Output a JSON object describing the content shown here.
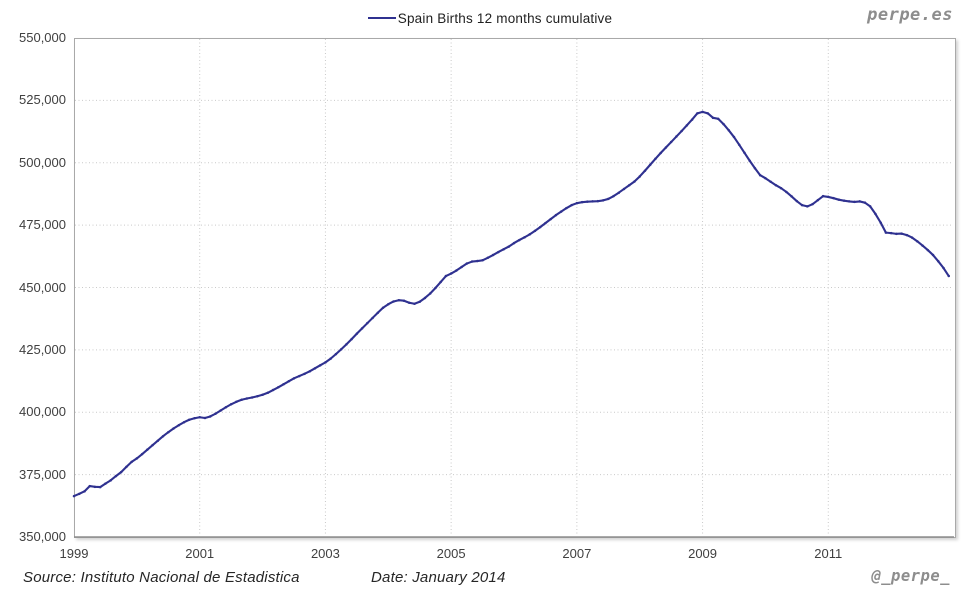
{
  "branding": {
    "logo": "perpe.es",
    "handle": "@_perpe_",
    "brand_color": "#8d8d8d"
  },
  "legend": {
    "label": "Spain Births 12 months cumulative"
  },
  "footer": {
    "source": "Source: Instituto Nacional de Estadistica",
    "date": "Date: January 2014"
  },
  "chart_data": {
    "type": "line",
    "title": "Spain Births 12 months cumulative",
    "xlabel": "",
    "ylabel": "",
    "grid": "dotted",
    "legend_position": "top-center",
    "ylim": [
      350000,
      550000
    ],
    "y_tick_step": 25000,
    "y_ticks": [
      350000,
      375000,
      400000,
      425000,
      450000,
      475000,
      500000,
      525000,
      550000
    ],
    "x_ticks": [
      1999,
      2001,
      2003,
      2005,
      2007,
      2009,
      2011
    ],
    "x_start": "1999-01",
    "x_end": "2012-12",
    "frequency": "monthly",
    "series": [
      {
        "name": "Spain Births 12 months cumulative",
        "color": "#2F3190",
        "values": [
          366400,
          367300,
          368300,
          370400,
          370100,
          370000,
          371400,
          372700,
          374400,
          376000,
          378100,
          380100,
          381500,
          383200,
          385000,
          386800,
          388600,
          390400,
          392000,
          393500,
          394800,
          396000,
          397000,
          397600,
          398000,
          397700,
          398300,
          399400,
          400700,
          402000,
          403200,
          404200,
          405000,
          405500,
          405900,
          406400,
          407000,
          407800,
          408900,
          410000,
          411200,
          412400,
          413600,
          414500,
          415400,
          416400,
          417600,
          418800,
          420000,
          421500,
          423300,
          425200,
          427200,
          429300,
          431500,
          433600,
          435700,
          437800,
          439900,
          441900,
          443300,
          444400,
          444900,
          444700,
          443900,
          443500,
          444300,
          445800,
          447600,
          449800,
          452200,
          454600,
          455600,
          456800,
          458200,
          459600,
          460400,
          460600,
          460900,
          461900,
          463000,
          464200,
          465300,
          466400,
          467800,
          469000,
          470100,
          471300,
          472700,
          474200,
          475800,
          477400,
          479000,
          480400,
          481800,
          483000,
          483800,
          484200,
          484400,
          484500,
          484600,
          484900,
          485500,
          486600,
          488000,
          489500,
          491000,
          492500,
          494500,
          496800,
          499200,
          501600,
          503900,
          506100,
          508300,
          510500,
          512700,
          515000,
          517300,
          519800,
          520400,
          519800,
          518000,
          517600,
          515500,
          513000,
          510300,
          507200,
          504000,
          500800,
          497800,
          495000,
          493800,
          492400,
          491000,
          489800,
          488300,
          486500,
          484600,
          483000,
          482500,
          483400,
          485000,
          486600,
          486300,
          485800,
          485200,
          484800,
          484500,
          484300,
          484500,
          484000,
          482500,
          479500,
          476000,
          472000,
          471800,
          471500,
          471600,
          471000,
          470000,
          468500,
          466800,
          465000,
          463000,
          460500,
          457800,
          454600
        ]
      }
    ]
  }
}
